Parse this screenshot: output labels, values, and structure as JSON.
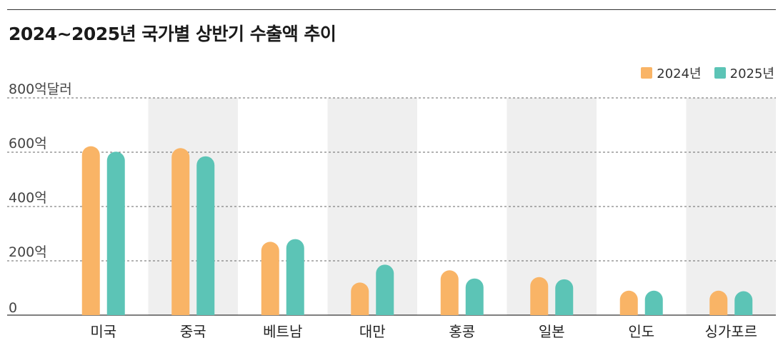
{
  "title": "2024~2025년 국가별 상반기 수출액  추이",
  "colors": {
    "series_2024": "#f9b466",
    "series_2025": "#5cc4b6",
    "band": "#efefef",
    "grid": "#666666",
    "axis": "#333333"
  },
  "chart_data": {
    "type": "bar",
    "title": "2024~2025년 국가별 상반기 수출액  추이",
    "xlabel": "",
    "ylabel": "",
    "unit": "억달러",
    "ylim": [
      0,
      800
    ],
    "yticks": [
      0,
      200,
      400,
      600,
      800
    ],
    "ytick_labels": [
      "0",
      "200억",
      "400억",
      "600억",
      "800억달러"
    ],
    "grid": true,
    "legend_position": "top-right",
    "categories": [
      "미국",
      "중국",
      "베트남",
      "대만",
      "홍콩",
      "일본",
      "인도",
      "싱가포르"
    ],
    "series": [
      {
        "name": "2024년",
        "values": [
          622,
          615,
          270,
          120,
          165,
          140,
          90,
          90
        ]
      },
      {
        "name": "2025년",
        "values": [
          602,
          585,
          280,
          186,
          135,
          132,
          90,
          88
        ]
      }
    ]
  }
}
